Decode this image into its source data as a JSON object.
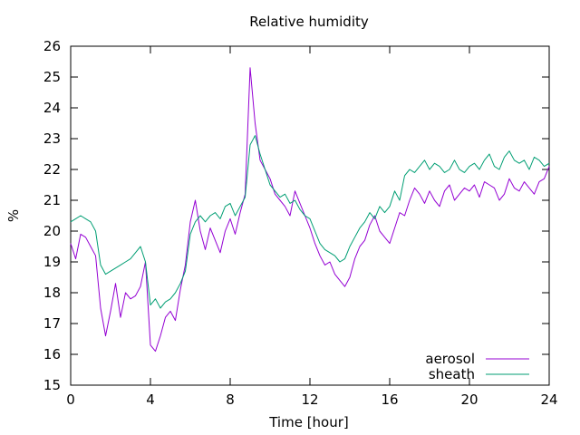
{
  "chart_data": {
    "type": "line",
    "title": "Relative humidity",
    "xlabel": "Time [hour]",
    "ylabel": "%",
    "xlim": [
      0,
      24
    ],
    "ylim": [
      15,
      26
    ],
    "xticks": [
      0,
      4,
      8,
      12,
      16,
      20,
      24
    ],
    "yticks": [
      15,
      16,
      17,
      18,
      19,
      20,
      21,
      22,
      23,
      24,
      25,
      26
    ],
    "grid": false,
    "legend_position": "bottom-right",
    "x": [
      0,
      0.25,
      0.5,
      0.75,
      1.0,
      1.25,
      1.5,
      1.75,
      2.0,
      2.25,
      2.5,
      2.75,
      3.0,
      3.25,
      3.5,
      3.75,
      4.0,
      4.25,
      4.5,
      4.75,
      5.0,
      5.25,
      5.5,
      5.75,
      6.0,
      6.25,
      6.5,
      6.75,
      7.0,
      7.25,
      7.5,
      7.75,
      8.0,
      8.25,
      8.5,
      8.75,
      9.0,
      9.25,
      9.5,
      9.75,
      10.0,
      10.25,
      10.5,
      10.75,
      11.0,
      11.25,
      11.5,
      11.75,
      12.0,
      12.25,
      12.5,
      12.75,
      13.0,
      13.25,
      13.5,
      13.75,
      14.0,
      14.25,
      14.5,
      14.75,
      15.0,
      15.25,
      15.5,
      15.75,
      16.0,
      16.25,
      16.5,
      16.75,
      17.0,
      17.25,
      17.5,
      17.75,
      18.0,
      18.25,
      18.5,
      18.75,
      19.0,
      19.25,
      19.5,
      19.75,
      20.0,
      20.25,
      20.5,
      20.75,
      21.0,
      21.25,
      21.5,
      21.75,
      22.0,
      22.25,
      22.5,
      22.75,
      23.0,
      23.25,
      23.5,
      23.75,
      24.0
    ],
    "series": [
      {
        "name": "aerosol",
        "color": "#9400d3",
        "values": [
          19.6,
          19.1,
          19.9,
          19.8,
          19.5,
          19.2,
          17.5,
          16.6,
          17.4,
          18.3,
          17.2,
          18.0,
          17.8,
          17.9,
          18.2,
          19.0,
          16.3,
          16.1,
          16.6,
          17.2,
          17.4,
          17.1,
          18.1,
          18.9,
          20.3,
          21.0,
          20.0,
          19.4,
          20.1,
          19.7,
          19.3,
          20.0,
          20.4,
          19.9,
          20.6,
          21.2,
          25.3,
          23.5,
          22.3,
          22.0,
          21.7,
          21.2,
          21.0,
          20.8,
          20.5,
          21.3,
          20.9,
          20.5,
          20.1,
          19.6,
          19.2,
          18.9,
          19.0,
          18.6,
          18.4,
          18.2,
          18.5,
          19.1,
          19.5,
          19.7,
          20.2,
          20.5,
          20.0,
          19.8,
          19.6,
          20.1,
          20.6,
          20.5,
          21.0,
          21.4,
          21.2,
          20.9,
          21.3,
          21.0,
          20.8,
          21.3,
          21.5,
          21.0,
          21.2,
          21.4,
          21.3,
          21.5,
          21.1,
          21.6,
          21.5,
          21.4,
          21.0,
          21.2,
          21.7,
          21.4,
          21.3,
          21.6,
          21.4,
          21.2,
          21.6,
          21.7,
          22.1
        ]
      },
      {
        "name": "sheath",
        "color": "#009e73",
        "values": [
          20.3,
          20.4,
          20.5,
          20.4,
          20.3,
          20.0,
          18.9,
          18.6,
          18.7,
          18.8,
          18.9,
          19.0,
          19.1,
          19.3,
          19.5,
          19.0,
          17.6,
          17.8,
          17.5,
          17.7,
          17.8,
          18.0,
          18.3,
          18.7,
          19.9,
          20.3,
          20.5,
          20.3,
          20.5,
          20.6,
          20.4,
          20.8,
          20.9,
          20.5,
          20.8,
          21.1,
          22.8,
          23.1,
          22.5,
          22.0,
          21.5,
          21.3,
          21.1,
          21.2,
          20.9,
          21.0,
          20.7,
          20.5,
          20.4,
          20.0,
          19.6,
          19.4,
          19.3,
          19.2,
          19.0,
          19.1,
          19.5,
          19.8,
          20.1,
          20.3,
          20.6,
          20.4,
          20.8,
          20.6,
          20.8,
          21.3,
          21.0,
          21.8,
          22.0,
          21.9,
          22.1,
          22.3,
          22.0,
          22.2,
          22.1,
          21.9,
          22.0,
          22.3,
          22.0,
          21.9,
          22.1,
          22.2,
          22.0,
          22.3,
          22.5,
          22.1,
          22.0,
          22.4,
          22.6,
          22.3,
          22.2,
          22.3,
          22.0,
          22.4,
          22.3,
          22.1,
          22.2
        ]
      }
    ]
  }
}
